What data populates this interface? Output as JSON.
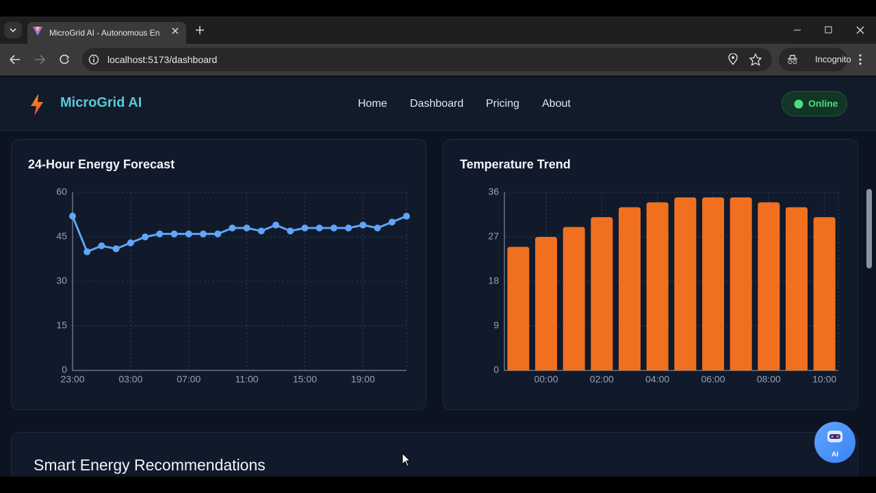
{
  "browser": {
    "tab_title": "MicroGrid AI - Autonomous En",
    "url": "localhost:5173/dashboard",
    "profile": "Incognito"
  },
  "header": {
    "brand": "MicroGrid AI",
    "nav": [
      "Home",
      "Dashboard",
      "Pricing",
      "About"
    ],
    "status": "Online"
  },
  "chart_data": [
    {
      "type": "line",
      "title": "24-Hour Energy Forecast",
      "color": "#60a5fa",
      "grid": true,
      "categories": [
        "23:00",
        null,
        null,
        null,
        "03:00",
        null,
        null,
        null,
        "07:00",
        null,
        null,
        null,
        "11:00",
        null,
        null,
        null,
        "15:00",
        null,
        null,
        null,
        "19:00",
        null,
        null,
        null
      ],
      "values": [
        52,
        40,
        42,
        41,
        43,
        45,
        46,
        46,
        46,
        46,
        46,
        48,
        48,
        47,
        49,
        47,
        48,
        48,
        48,
        48,
        49,
        48,
        50,
        52
      ],
      "ylim": [
        0,
        60
      ],
      "yticks": [
        0,
        15,
        30,
        45,
        60
      ]
    },
    {
      "type": "bar",
      "title": "Temperature Trend",
      "color": "#f07020",
      "grid": true,
      "categories": [
        null,
        "00:00",
        null,
        "02:00",
        null,
        "04:00",
        null,
        "06:00",
        null,
        "08:00",
        null,
        "10:00"
      ],
      "values": [
        25,
        27,
        29,
        31,
        33,
        34,
        35,
        35,
        35,
        34,
        33,
        31
      ],
      "ylim": [
        0,
        36
      ],
      "yticks": [
        0,
        9,
        18,
        27,
        36
      ]
    }
  ],
  "section": {
    "title": "Smart Energy Recommendations"
  },
  "assistant": {
    "label": "AI"
  }
}
